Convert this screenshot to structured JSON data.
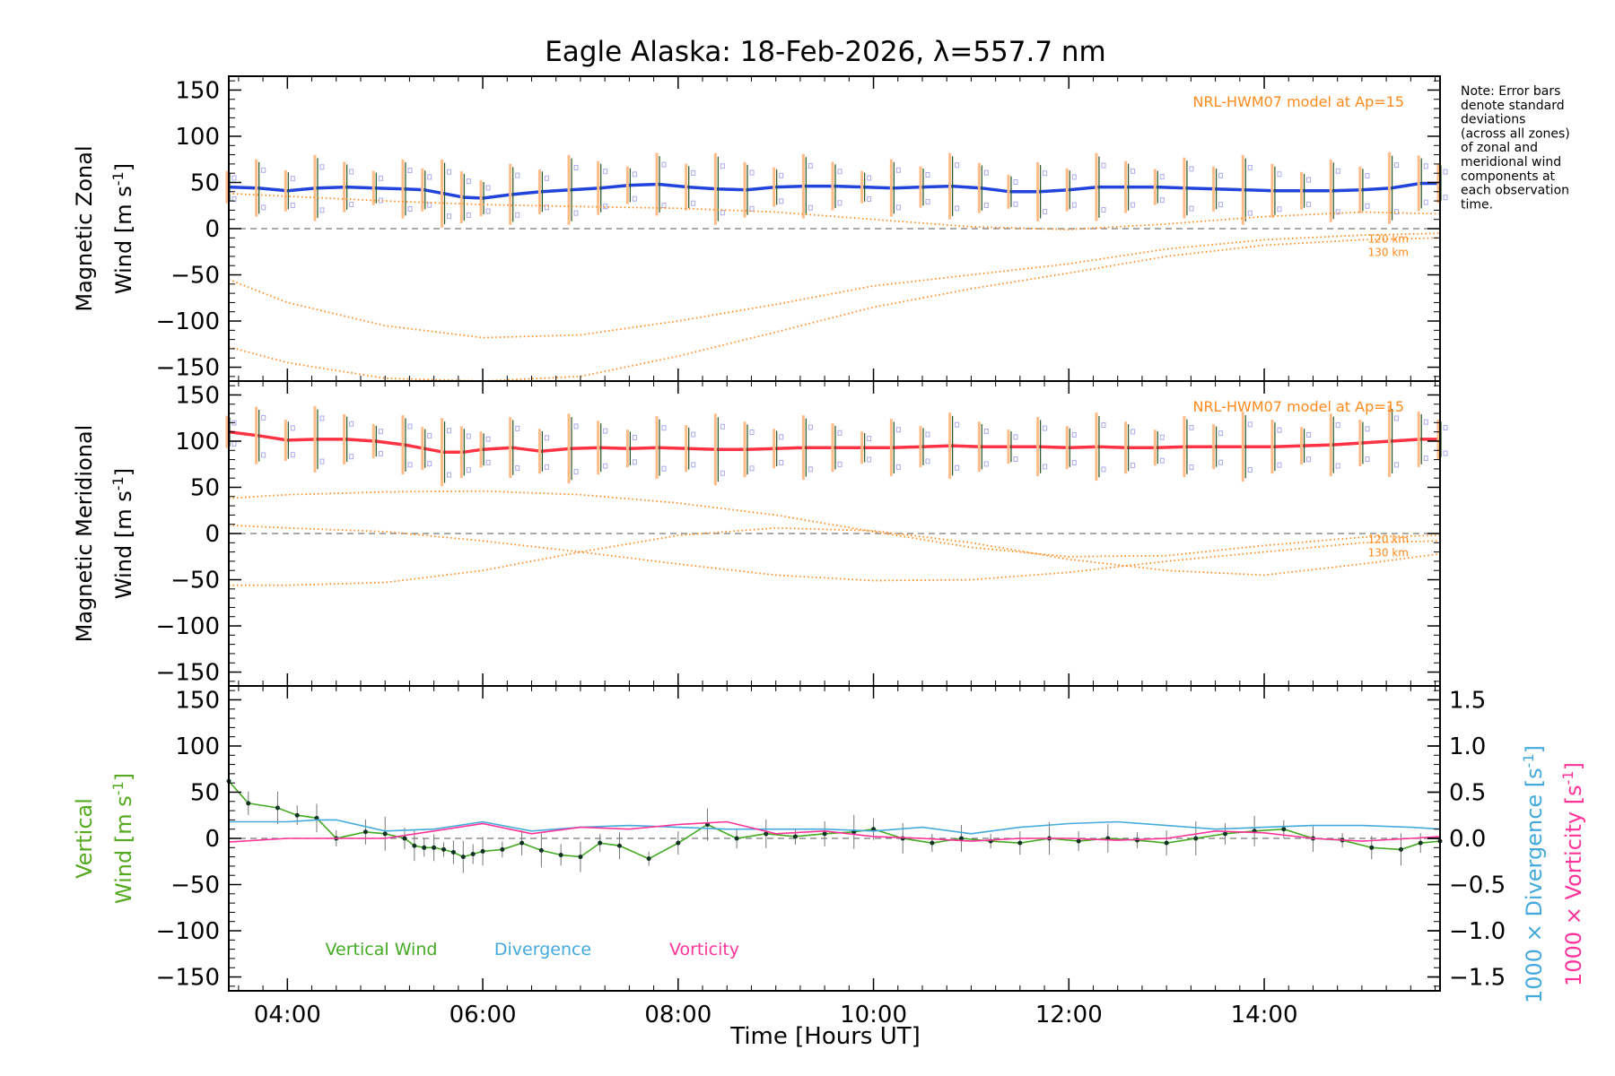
{
  "chart_data": {
    "type": "line",
    "title": "Eagle Alaska: 18-Feb-2026, λ=557.7 nm",
    "xlabel": "Time [Hours UT]",
    "x_ticks": [
      "04:00",
      "06:00",
      "08:00",
      "10:00",
      "12:00",
      "14:00"
    ],
    "x_tick_values": [
      4,
      6,
      8,
      10,
      12,
      14
    ],
    "xlim": [
      3.4,
      15.8
    ],
    "note": [
      "Note: Error bars",
      "denote standard",
      "deviations",
      "(across all zones)",
      "of zonal and",
      "meridional wind",
      "components at",
      "each observation",
      "time."
    ],
    "panels": [
      {
        "name": "zonal",
        "ylabel_1": "Magnetic Zonal",
        "ylabel_2": "Wind [m s",
        "ylabel_sup": "-1",
        "ylabel_end": "]",
        "ylim": [
          -165,
          165
        ],
        "y_ticks": [
          150,
          100,
          50,
          0,
          -50,
          -100,
          -150
        ],
        "model_label": "NRL-HWM07 model at Ap=15",
        "model_alt_labels": [
          "120 km",
          "130 km"
        ],
        "series": [
          {
            "name": "Zonal wind",
            "color": "#2244dd",
            "x": [
              3.4,
              3.7,
              4.0,
              4.3,
              4.6,
              4.9,
              5.2,
              5.4,
              5.6,
              5.8,
              6.0,
              6.3,
              6.6,
              6.9,
              7.2,
              7.5,
              7.8,
              8.1,
              8.4,
              8.7,
              9.0,
              9.3,
              9.6,
              9.9,
              10.2,
              10.5,
              10.8,
              11.1,
              11.4,
              11.7,
              12.0,
              12.3,
              12.6,
              12.9,
              13.2,
              13.5,
              13.8,
              14.1,
              14.4,
              14.7,
              15.0,
              15.3,
              15.6,
              15.8
            ],
            "y": [
              45,
              44,
              41,
              44,
              45,
              44,
              43,
              42,
              38,
              34,
              33,
              37,
              40,
              42,
              44,
              47,
              48,
              45,
              43,
              42,
              45,
              46,
              46,
              45,
              44,
              45,
              46,
              44,
              40,
              40,
              42,
              45,
              45,
              45,
              44,
              43,
              42,
              41,
              41,
              41,
              42,
              44,
              49,
              49
            ]
          },
          {
            "name": "NRL-HWM07 120 km",
            "color": "#ff8a1c",
            "style": "dotted",
            "x": [
              3.4,
              4.0,
              5.0,
              6.0,
              7.0,
              8.0,
              9.0,
              10.0,
              11.0,
              12.0,
              13.0,
              14.0,
              15.0,
              15.8
            ],
            "y": [
              -55,
              -80,
              -105,
              -118,
              -115,
              -100,
              -82,
              -62,
              -50,
              -38,
              -22,
              -12,
              -7,
              -5
            ]
          },
          {
            "name": "NRL-HWM07 130 km",
            "color": "#ff8a1c",
            "style": "dotted",
            "x": [
              3.4,
              4.0,
              5.0,
              6.0,
              7.0,
              8.0,
              9.0,
              10.0,
              11.0,
              12.0,
              13.0,
              14.0,
              15.0,
              15.8
            ],
            "y": [
              -128,
              -145,
              -162,
              -165,
              -160,
              -138,
              -112,
              -85,
              -65,
              -48,
              -30,
              -18,
              -12,
              -10
            ]
          },
          {
            "name": "NRL-HWM07 upper",
            "color": "#ff8a1c",
            "style": "dotted",
            "x": [
              3.4,
              4.0,
              5.0,
              6.0,
              7.0,
              8.0,
              9.0,
              10.0,
              11.0,
              12.0,
              13.0,
              14.0,
              15.0,
              15.8
            ],
            "y": [
              38,
              35,
              30,
              26,
              24,
              22,
              18,
              10,
              2,
              -1,
              5,
              13,
              18,
              16
            ]
          }
        ]
      },
      {
        "name": "meridional",
        "ylabel_1": "Magnetic Meridional",
        "ylabel_2": "Wind [m s",
        "ylabel_sup": "-1",
        "ylabel_end": "]",
        "ylim": [
          -165,
          165
        ],
        "y_ticks": [
          150,
          100,
          50,
          0,
          -50,
          -100,
          -150
        ],
        "model_label": "NRL-HWM07 model at Ap=15",
        "model_alt_labels": [
          "120 km",
          "130 km"
        ],
        "series": [
          {
            "name": "Meridional wind",
            "color": "#ff3344",
            "x": [
              3.4,
              3.7,
              4.0,
              4.3,
              4.6,
              4.9,
              5.2,
              5.4,
              5.6,
              5.8,
              6.0,
              6.3,
              6.6,
              6.9,
              7.2,
              7.5,
              7.8,
              8.1,
              8.4,
              8.7,
              9.0,
              9.3,
              9.6,
              9.9,
              10.2,
              10.5,
              10.8,
              11.1,
              11.4,
              11.7,
              12.0,
              12.3,
              12.6,
              12.9,
              13.2,
              13.5,
              13.8,
              14.1,
              14.4,
              14.7,
              15.0,
              15.3,
              15.6,
              15.8
            ],
            "y": [
              110,
              106,
              101,
              102,
              102,
              100,
              96,
              92,
              88,
              88,
              91,
              93,
              89,
              92,
              93,
              92,
              93,
              92,
              91,
              91,
              92,
              93,
              93,
              93,
              93,
              94,
              95,
              94,
              94,
              94,
              93,
              94,
              93,
              93,
              94,
              94,
              94,
              94,
              95,
              96,
              98,
              100,
              102,
              102
            ]
          },
          {
            "name": "NRL-HWM07 a",
            "color": "#ff8a1c",
            "style": "dotted",
            "x": [
              3.4,
              4.0,
              5.0,
              6.0,
              7.0,
              8.0,
              9.0,
              10.0,
              11.0,
              12.0,
              13.0,
              14.0,
              15.0,
              15.8
            ],
            "y": [
              38,
              42,
              45,
              46,
              42,
              33,
              20,
              2,
              -15,
              -25,
              -24,
              -13,
              -4,
              -2
            ]
          },
          {
            "name": "NRL-HWM07 b",
            "color": "#ff8a1c",
            "style": "dotted",
            "x": [
              3.4,
              4.0,
              5.0,
              6.0,
              7.0,
              8.0,
              9.0,
              10.0,
              11.0,
              12.0,
              13.0,
              14.0,
              15.0,
              15.8
            ],
            "y": [
              9,
              6,
              2,
              -8,
              -20,
              -33,
              -45,
              -51,
              -50,
              -42,
              -30,
              -20,
              -10,
              -8
            ]
          },
          {
            "name": "NRL-HWM07 c",
            "color": "#ff8a1c",
            "style": "dotted",
            "x": [
              3.4,
              4.0,
              5.0,
              6.0,
              7.0,
              8.0,
              9.0,
              10.0,
              11.0,
              12.0,
              13.0,
              14.0,
              15.0,
              15.8
            ],
            "y": [
              -56,
              -56,
              -53,
              -40,
              -20,
              -2,
              6,
              3,
              -10,
              -28,
              -40,
              -45,
              -33,
              -22
            ]
          }
        ]
      },
      {
        "name": "vertical",
        "ylabel_1": "Vertical",
        "ylabel_2": "Wind [m s",
        "ylabel_sup": "-1",
        "ylabel_end": "]",
        "ylim": [
          -165,
          165
        ],
        "y_ticks": [
          150,
          100,
          50,
          0,
          -50,
          -100,
          -150
        ],
        "y2_ticks": [
          "1.5",
          "1.0",
          "0.5",
          "0.0",
          "−0.5",
          "−1.0",
          "−1.5"
        ],
        "y2_tick_values": [
          1.5,
          1.0,
          0.5,
          0.0,
          -0.5,
          -1.0,
          -1.5
        ],
        "y2lim": [
          -1.65,
          1.65
        ],
        "y2label_div": "1000 × Divergence [s",
        "y2label_vor": "1000 × Vorticity [s",
        "y2label_sup": "-1",
        "y2label_end": "]",
        "legend": [
          "Vertical Wind",
          "Divergence",
          "Vorticity"
        ],
        "series": [
          {
            "name": "Vertical Wind",
            "color": "#44aa22",
            "x": [
              3.4,
              3.6,
              3.9,
              4.1,
              4.3,
              4.5,
              4.8,
              5.0,
              5.2,
              5.3,
              5.4,
              5.5,
              5.6,
              5.7,
              5.8,
              5.9,
              6.0,
              6.2,
              6.4,
              6.6,
              6.8,
              7.0,
              7.2,
              7.4,
              7.7,
              8.0,
              8.3,
              8.6,
              8.9,
              9.2,
              9.5,
              9.8,
              10.0,
              10.3,
              10.6,
              10.9,
              11.2,
              11.5,
              11.8,
              12.1,
              12.4,
              12.7,
              13.0,
              13.3,
              13.6,
              13.9,
              14.2,
              14.5,
              14.8,
              15.1,
              15.4,
              15.6,
              15.8
            ],
            "y": [
              62,
              38,
              33,
              25,
              22,
              0,
              7,
              5,
              0,
              -8,
              -10,
              -10,
              -12,
              -15,
              -20,
              -17,
              -14,
              -12,
              -5,
              -13,
              -18,
              -20,
              -5,
              -8,
              -22,
              -5,
              15,
              0,
              5,
              2,
              5,
              7,
              10,
              0,
              -5,
              0,
              -3,
              -5,
              0,
              -3,
              0,
              -2,
              -5,
              0,
              5,
              8,
              10,
              0,
              -2,
              -10,
              -12,
              -5,
              -3
            ]
          },
          {
            "name": "Divergence",
            "color": "#44aadd",
            "x": [
              3.4,
              4.0,
              4.3,
              4.5,
              5.0,
              5.5,
              6.0,
              6.5,
              7.0,
              7.5,
              8.0,
              8.5,
              9.0,
              9.5,
              10.0,
              10.5,
              11.0,
              11.5,
              12.0,
              12.5,
              13.0,
              13.5,
              14.0,
              14.5,
              15.0,
              15.5,
              15.8
            ],
            "y": [
              0.18,
              0.18,
              0.2,
              0.2,
              0.08,
              0.1,
              0.18,
              0.08,
              0.12,
              0.14,
              0.12,
              0.1,
              0.1,
              0.1,
              0.08,
              0.12,
              0.05,
              0.12,
              0.16,
              0.18,
              0.14,
              0.1,
              0.12,
              0.14,
              0.14,
              0.12,
              0.1
            ]
          },
          {
            "name": "Vorticity",
            "color": "#ff3399",
            "x": [
              3.4,
              4.0,
              4.5,
              5.0,
              5.5,
              6.0,
              6.5,
              7.0,
              7.5,
              8.0,
              8.5,
              9.0,
              9.5,
              10.0,
              10.5,
              11.0,
              11.5,
              12.0,
              12.5,
              13.0,
              13.5,
              14.0,
              14.5,
              15.0,
              15.5,
              15.8
            ],
            "y": [
              -0.04,
              0.0,
              0.0,
              0.0,
              0.08,
              0.16,
              0.05,
              0.12,
              0.1,
              0.15,
              0.18,
              0.05,
              0.08,
              0.02,
              0.0,
              -0.03,
              0.0,
              0.0,
              -0.02,
              0.0,
              0.08,
              0.06,
              0.0,
              -0.03,
              0.0,
              0.02
            ]
          }
        ]
      }
    ]
  }
}
